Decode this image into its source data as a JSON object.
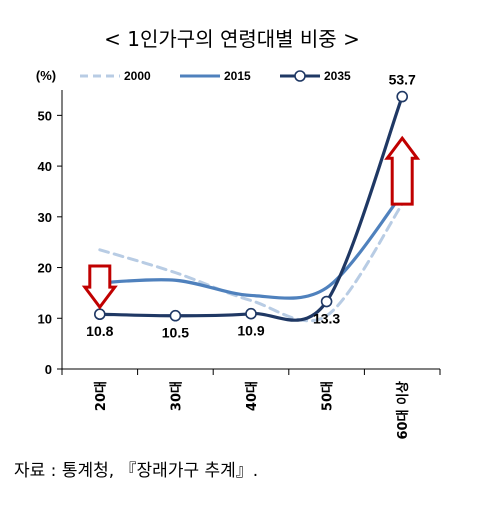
{
  "chart_data": {
    "type": "line",
    "title": "< 1인가구의 연령대별 비중 >",
    "ylabel": "(%)",
    "xlabel": "",
    "categories": [
      "20대",
      "30대",
      "40대",
      "50대",
      "60대 이상"
    ],
    "ylim": [
      0,
      55
    ],
    "yticks": [
      0,
      10,
      20,
      30,
      40,
      50
    ],
    "grid": false,
    "legend_position": "top",
    "series": [
      {
        "name": "2000",
        "values": [
          23.5,
          19.0,
          13.5,
          10.5,
          32.5
        ],
        "color": "#b8cce4",
        "style": "dashed"
      },
      {
        "name": "2015",
        "values": [
          17.0,
          17.5,
          14.5,
          16.0,
          34.5
        ],
        "color": "#4f81bd",
        "style": "solid"
      },
      {
        "name": "2035",
        "values": [
          10.8,
          10.5,
          10.9,
          13.3,
          53.7
        ],
        "color": "#1f3864",
        "style": "solid-marker",
        "labels": [
          "10.8",
          "10.5",
          "10.9",
          "13.3",
          "53.7"
        ]
      }
    ],
    "annotations": [
      {
        "type": "arrow-down",
        "category": "20대",
        "color": "#c00000"
      },
      {
        "type": "arrow-up",
        "category": "60대 이상",
        "color": "#c00000"
      }
    ],
    "source": "자료 : 통계청, 『장래가구 추계』."
  }
}
